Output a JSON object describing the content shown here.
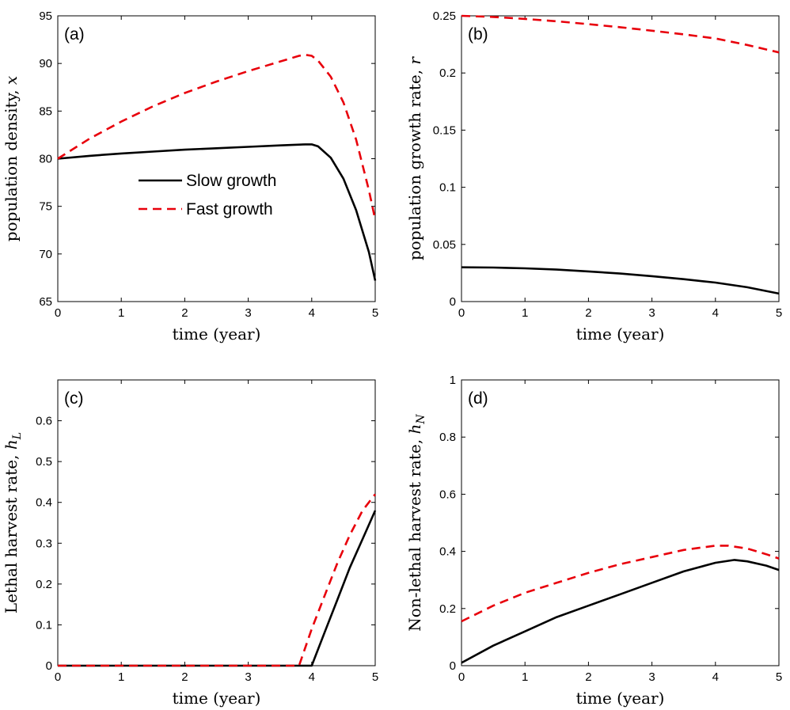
{
  "series_styles": {
    "Slow growth": {
      "color": "#000000",
      "dash": "solid"
    },
    "Fast growth": {
      "color": "#e8000b",
      "dash": "dashed"
    }
  },
  "chart_data": [
    {
      "type": "line",
      "panel_label": "(a)",
      "xlabel": "time (year)",
      "ylabel": "population density, x",
      "xlim": [
        0,
        5
      ],
      "ylim": [
        65,
        95
      ],
      "xticks": [
        "0",
        "1",
        "2",
        "3",
        "4",
        "5"
      ],
      "yticks": [
        "65",
        "70",
        "75",
        "80",
        "85",
        "90",
        "95"
      ],
      "grid": false,
      "legend": {
        "placement": "center-left",
        "entries": [
          "Slow growth",
          "Fast growth"
        ]
      },
      "series": [
        {
          "name": "Slow growth",
          "x": [
            0,
            0.5,
            1,
            1.5,
            2,
            2.5,
            3,
            3.5,
            3.9,
            4.0,
            4.1,
            4.3,
            4.5,
            4.7,
            4.9,
            5.0
          ],
          "y": [
            80.0,
            80.3,
            80.55,
            80.75,
            80.95,
            81.1,
            81.25,
            81.4,
            81.5,
            81.5,
            81.3,
            80.1,
            77.9,
            74.6,
            70.2,
            67.2
          ]
        },
        {
          "name": "Fast growth",
          "x": [
            0,
            0.5,
            1,
            1.5,
            2,
            2.5,
            3,
            3.5,
            3.8,
            3.9,
            4.0,
            4.1,
            4.3,
            4.5,
            4.7,
            4.9,
            5.0
          ],
          "y": [
            80.0,
            82.1,
            83.9,
            85.5,
            86.9,
            88.1,
            89.2,
            90.2,
            90.8,
            90.9,
            90.8,
            90.3,
            88.6,
            85.9,
            82.0,
            76.7,
            73.6
          ]
        }
      ]
    },
    {
      "type": "line",
      "panel_label": "(b)",
      "xlabel": "time (year)",
      "ylabel": "population growth rate, r",
      "xlim": [
        0,
        5
      ],
      "ylim": [
        0,
        0.25
      ],
      "xticks": [
        "0",
        "1",
        "2",
        "3",
        "4",
        "5"
      ],
      "yticks": [
        "0",
        "0.05",
        "0.1",
        "0.15",
        "0.2",
        "0.25"
      ],
      "grid": false,
      "series": [
        {
          "name": "Slow growth",
          "x": [
            0,
            0.5,
            1,
            1.5,
            2,
            2.5,
            3,
            3.5,
            4,
            4.5,
            5
          ],
          "y": [
            0.03,
            0.0298,
            0.0291,
            0.028,
            0.0264,
            0.0245,
            0.0222,
            0.0196,
            0.0166,
            0.0125,
            0.007
          ]
        },
        {
          "name": "Fast growth",
          "x": [
            0,
            0.5,
            1,
            1.5,
            2,
            2.5,
            3,
            3.5,
            4,
            4.5,
            5
          ],
          "y": [
            0.25,
            0.249,
            0.2473,
            0.2452,
            0.2427,
            0.24,
            0.237,
            0.2338,
            0.2302,
            0.2245,
            0.218
          ]
        }
      ]
    },
    {
      "type": "line",
      "panel_label": "(c)",
      "xlabel": "time (year)",
      "ylabel": "Lethal harvest rate, h_L",
      "xlim": [
        0,
        5
      ],
      "ylim": [
        0,
        0.7
      ],
      "xticks": [
        "0",
        "1",
        "2",
        "3",
        "4",
        "5"
      ],
      "yticks": [
        "0",
        "0.1",
        "0.2",
        "0.3",
        "0.4",
        "0.5",
        "0.6"
      ],
      "grid": false,
      "series": [
        {
          "name": "Slow growth",
          "x": [
            0,
            1,
            2,
            3,
            3.8,
            4.0,
            4.2,
            4.4,
            4.6,
            4.8,
            5.0
          ],
          "y": [
            0,
            0,
            0,
            0,
            0,
            0,
            0.08,
            0.16,
            0.24,
            0.31,
            0.38
          ]
        },
        {
          "name": "Fast growth",
          "x": [
            0,
            1,
            2,
            3,
            3.8,
            4.0,
            4.2,
            4.4,
            4.6,
            4.8,
            5.0
          ],
          "y": [
            0,
            0,
            0,
            0,
            0,
            0.09,
            0.17,
            0.25,
            0.32,
            0.38,
            0.42
          ]
        }
      ]
    },
    {
      "type": "line",
      "panel_label": "(d)",
      "xlabel": "time (year)",
      "ylabel": "Non-lethal harvest rate, h_N",
      "xlim": [
        0,
        5
      ],
      "ylim": [
        0,
        1
      ],
      "xticks": [
        "0",
        "1",
        "2",
        "3",
        "4",
        "5"
      ],
      "yticks": [
        "0",
        "0.2",
        "0.4",
        "0.6",
        "0.8",
        "1"
      ],
      "grid": false,
      "series": [
        {
          "name": "Slow growth",
          "x": [
            0,
            0.5,
            1,
            1.5,
            2,
            2.5,
            3,
            3.5,
            4,
            4.3,
            4.5,
            4.8,
            5.0
          ],
          "y": [
            0.01,
            0.07,
            0.12,
            0.17,
            0.21,
            0.25,
            0.29,
            0.33,
            0.36,
            0.37,
            0.365,
            0.35,
            0.335
          ]
        },
        {
          "name": "Fast growth",
          "x": [
            0,
            0.5,
            1,
            1.5,
            2,
            2.5,
            3,
            3.5,
            4,
            4.2,
            4.5,
            4.8,
            5.0
          ],
          "y": [
            0.155,
            0.21,
            0.255,
            0.29,
            0.325,
            0.355,
            0.38,
            0.405,
            0.42,
            0.42,
            0.41,
            0.39,
            0.375
          ]
        }
      ]
    }
  ]
}
